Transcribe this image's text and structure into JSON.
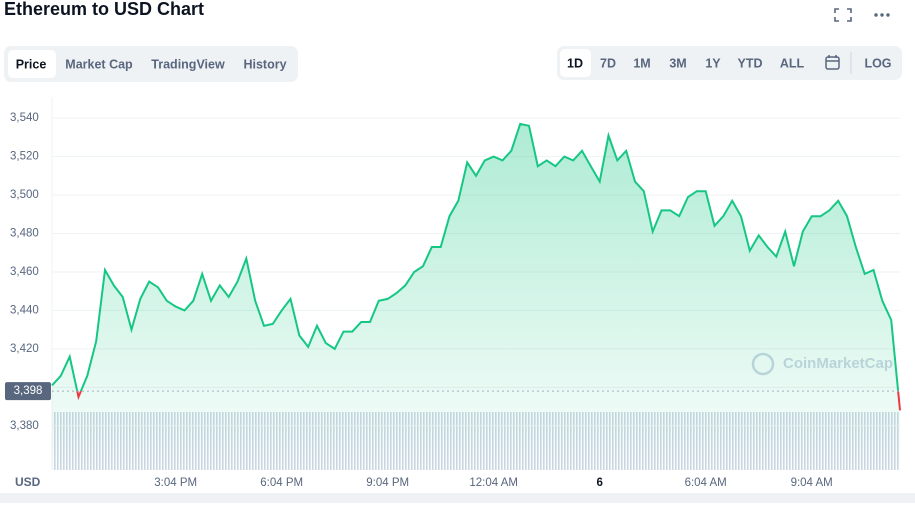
{
  "chart_data": {
    "type": "line",
    "title": "Ethereum to USD Chart",
    "y_label": "USD",
    "categories": [
      null,
      null,
      null,
      null,
      null,
      null,
      null,
      null,
      null,
      null,
      null,
      null,
      null,
      null,
      "3:04 PM",
      null,
      null,
      null,
      null,
      null,
      null,
      null,
      null,
      null,
      null,
      null,
      "6:04 PM",
      null,
      null,
      null,
      null,
      null,
      null,
      null,
      null,
      null,
      null,
      null,
      "9:04 PM",
      null,
      null,
      null,
      null,
      null,
      null,
      null,
      null,
      null,
      null,
      null,
      "12:04 AM",
      null,
      null,
      null,
      null,
      null,
      null,
      null,
      null,
      null,
      null,
      null,
      "6",
      null,
      null,
      null,
      null,
      null,
      null,
      null,
      null,
      null,
      null,
      null,
      "6:04 AM",
      null,
      null,
      null,
      null,
      null,
      null,
      null,
      null,
      null,
      null,
      null,
      "9:04 AM",
      null,
      null,
      null,
      null,
      null,
      null,
      null,
      null,
      null,
      null
    ],
    "values": [
      3401,
      3406,
      3416,
      3395,
      3406,
      3424,
      3461,
      3453,
      3447,
      3430,
      3446,
      3455,
      3452,
      3445,
      3442,
      3440,
      3445,
      3459,
      3445,
      3453,
      3447,
      3455,
      3467,
      3445,
      3432,
      3433,
      3440,
      3446,
      3427,
      3421,
      3432,
      3423,
      3420,
      3429,
      3429,
      3434,
      3434,
      3445,
      3446,
      3449,
      3453,
      3460,
      3463,
      3473,
      3473,
      3489,
      3497,
      3517,
      3510,
      3518,
      3520,
      3518,
      3523,
      3537,
      3536,
      3515,
      3518,
      3515,
      3520,
      3518,
      3523,
      3515,
      3507,
      3531,
      3518,
      3523,
      3507,
      3502,
      3481,
      3492,
      3492,
      3489,
      3499,
      3502,
      3502,
      3484,
      3489,
      3497,
      3489,
      3471,
      3479,
      3473,
      3468,
      3481,
      3463,
      3481,
      3489,
      3489,
      3492,
      3497,
      3489,
      3473,
      3459,
      3461,
      3445,
      3435,
      3388
    ],
    "color": "#16c784",
    "down_color": "#ea3943",
    "baseline": {
      "value": 3398,
      "label": "3,398"
    },
    "ylim": [
      3357,
      3551
    ],
    "yticks": [
      {
        "value": 3380,
        "label": "3,380"
      },
      {
        "value": 3400,
        "label": ""
      },
      {
        "value": 3420,
        "label": "3,420"
      },
      {
        "value": 3440,
        "label": "3,440"
      },
      {
        "value": 3460,
        "label": "3,460"
      },
      {
        "value": 3480,
        "label": "3,480"
      },
      {
        "value": 3500,
        "label": "3,500"
      },
      {
        "value": 3520,
        "label": "3,520"
      },
      {
        "value": 3540,
        "label": "3,540"
      }
    ],
    "grid": true
  },
  "toolbar": {
    "tabs": [
      "Price",
      "Market Cap",
      "TradingView",
      "History"
    ],
    "ranges": [
      "1D",
      "7D",
      "1M",
      "3M",
      "1Y",
      "YTD",
      "ALL"
    ],
    "log": "LOG"
  },
  "watermark": "CoinMarketCap"
}
